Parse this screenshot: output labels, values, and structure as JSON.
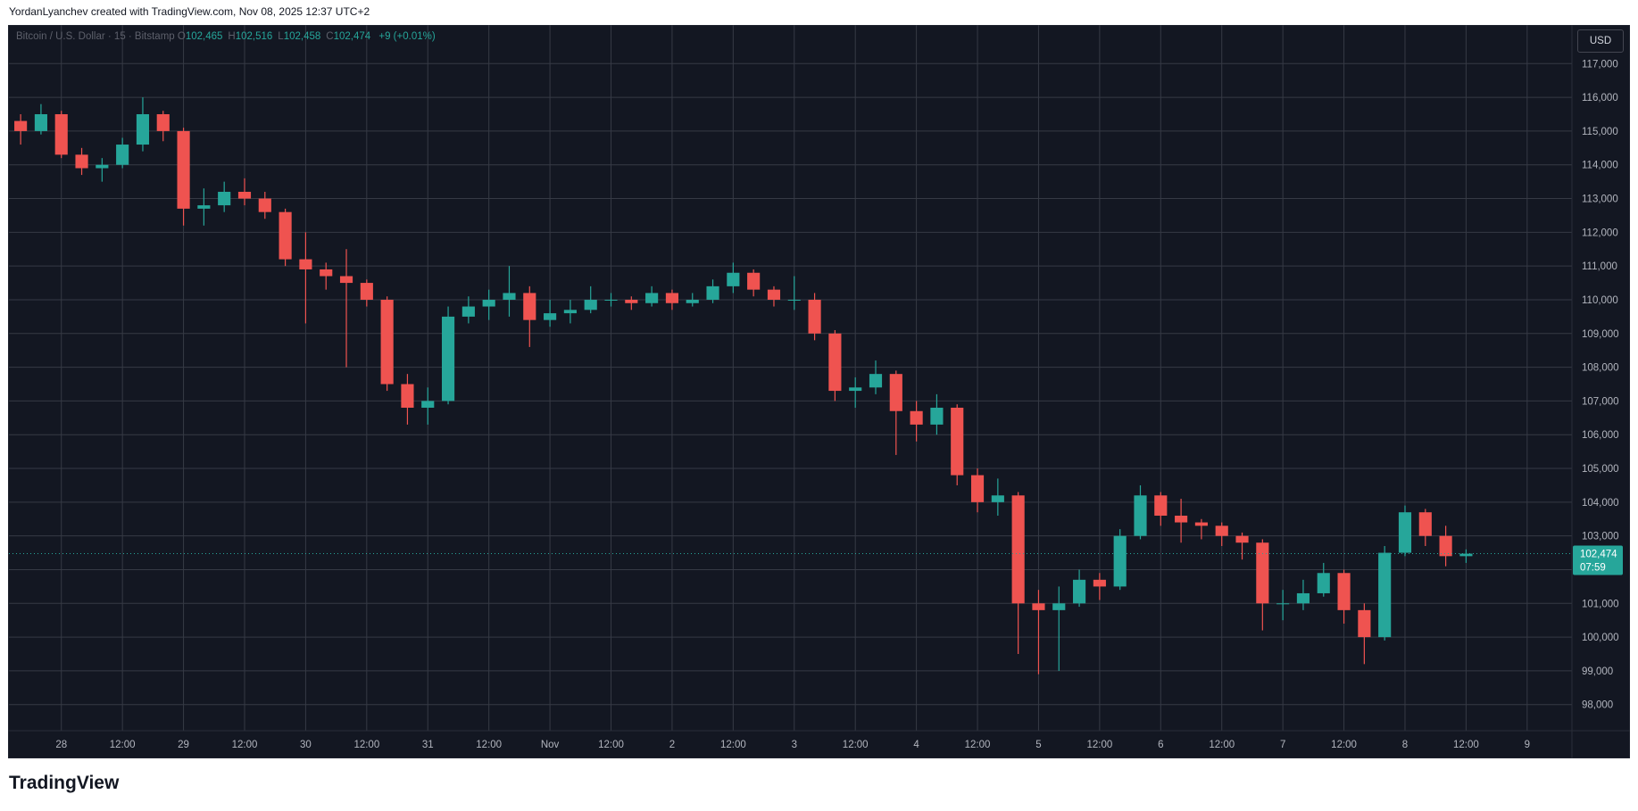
{
  "header": {
    "text": "YordanLyanchev created with TradingView.com, Nov 08, 2025 12:37 UTC+2"
  },
  "footer": {
    "logo": "TradingView"
  },
  "chart_data": {
    "type": "candlestick",
    "legend": {
      "symbol": "Bitcoin / U.S. Dollar · 15 · Bitstamp",
      "items": [
        {
          "key": "O",
          "value": "102,465"
        },
        {
          "key": "H",
          "value": "102,516"
        },
        {
          "key": "L",
          "value": "102,458"
        },
        {
          "key": "C",
          "value": "102,474"
        }
      ],
      "change": "+9 (+0.01%)"
    },
    "currency": "USD",
    "last_price": {
      "value": 102474,
      "label": "102,474"
    },
    "countdown": "07:59",
    "up_color": "#26a69a",
    "down_color": "#ef5350",
    "grid": true,
    "x": [
      -8,
      -4,
      0,
      4,
      8,
      12,
      16,
      20,
      24,
      28,
      32,
      36,
      40,
      44,
      48,
      52,
      56,
      60,
      64,
      68,
      72,
      76,
      80,
      84,
      88,
      92,
      96,
      100,
      104,
      108,
      112,
      116,
      120,
      124,
      128,
      132,
      136,
      140,
      144,
      148,
      152,
      156,
      160,
      164,
      168,
      172,
      176,
      180,
      184,
      188,
      192,
      196,
      200,
      204,
      208,
      212,
      216,
      220,
      224,
      228,
      232,
      236,
      240,
      244,
      248,
      252,
      256,
      260,
      264,
      268,
      272,
      276
    ],
    "open": [
      115300,
      115000,
      115500,
      114300,
      113900,
      114000,
      114600,
      115500,
      115000,
      112700,
      112800,
      113200,
      113000,
      112600,
      111200,
      110900,
      110700,
      110500,
      110000,
      107500,
      106800,
      107000,
      109500,
      109800,
      110000,
      110200,
      109400,
      109600,
      109700,
      110000,
      110000,
      109900,
      110200,
      109900,
      110000,
      110400,
      110800,
      110300,
      110000,
      110000,
      109000,
      107300,
      107400,
      107800,
      106700,
      106300,
      106800,
      104800,
      104000,
      104200,
      101000,
      100800,
      101000,
      101700,
      101500,
      103000,
      104200,
      103600,
      103400,
      103300,
      103000,
      102800,
      101000,
      101000,
      101300,
      101900,
      100800,
      100000,
      102500,
      103700,
      103000,
      102400
    ],
    "high": [
      115500,
      115800,
      115600,
      114500,
      114200,
      114800,
      116000,
      115600,
      115100,
      113300,
      113500,
      113600,
      113200,
      112700,
      112000,
      111100,
      111500,
      110600,
      110100,
      107800,
      107400,
      109800,
      110100,
      110300,
      111000,
      110400,
      110000,
      110000,
      110400,
      110200,
      110100,
      110400,
      110300,
      110200,
      110600,
      111100,
      110900,
      110400,
      110700,
      110200,
      109100,
      107700,
      108200,
      107900,
      107000,
      107200,
      106900,
      105000,
      104700,
      104300,
      101400,
      101500,
      102000,
      101900,
      103200,
      104500,
      104300,
      104100,
      103500,
      103400,
      103100,
      102900,
      101400,
      101700,
      102200,
      102000,
      101000,
      102700,
      103900,
      103800,
      103300,
      102600
    ],
    "low": [
      114600,
      114900,
      114200,
      113700,
      113500,
      113900,
      114400,
      114700,
      112200,
      112200,
      112600,
      112800,
      112400,
      111000,
      109300,
      110300,
      108000,
      109800,
      107300,
      106300,
      106300,
      106900,
      109300,
      109400,
      109500,
      108600,
      109200,
      109300,
      109600,
      109800,
      109700,
      109800,
      109700,
      109800,
      109900,
      110200,
      110100,
      109800,
      109700,
      108800,
      107000,
      106800,
      107200,
      105400,
      105800,
      106000,
      104500,
      103700,
      103600,
      99500,
      98900,
      99000,
      100900,
      101100,
      101400,
      102900,
      103300,
      102800,
      102900,
      102700,
      102300,
      100200,
      100500,
      100800,
      101200,
      100400,
      99200,
      99900,
      102400,
      102700,
      102100,
      102200
    ],
    "close": [
      115000,
      115500,
      114300,
      113900,
      114000,
      114600,
      115500,
      115000,
      112700,
      112800,
      113200,
      113000,
      112600,
      111200,
      110900,
      110700,
      110500,
      110000,
      107500,
      106800,
      107000,
      109500,
      109800,
      110000,
      110200,
      109400,
      109600,
      109700,
      110000,
      110000,
      109900,
      110200,
      109900,
      110000,
      110400,
      110800,
      110300,
      110000,
      110000,
      109000,
      107300,
      107400,
      107800,
      106700,
      106300,
      106800,
      104800,
      104000,
      104200,
      101000,
      100800,
      101000,
      101700,
      101500,
      103000,
      104200,
      103600,
      103400,
      103300,
      103000,
      102800,
      101000,
      101000,
      101300,
      101900,
      100800,
      100000,
      102500,
      103700,
      103000,
      102400,
      102474
    ],
    "xlim": [
      -10.3,
      296.8
    ],
    "xticks": [
      {
        "value": 0,
        "label": "28"
      },
      {
        "value": 12,
        "label": "12:00"
      },
      {
        "value": 24,
        "label": "29"
      },
      {
        "value": 36,
        "label": "12:00"
      },
      {
        "value": 48,
        "label": "30"
      },
      {
        "value": 60,
        "label": "12:00"
      },
      {
        "value": 72,
        "label": "31"
      },
      {
        "value": 84,
        "label": "12:00"
      },
      {
        "value": 96,
        "label": "Nov"
      },
      {
        "value": 108,
        "label": "12:00"
      },
      {
        "value": 120,
        "label": "2"
      },
      {
        "value": 132,
        "label": "12:00"
      },
      {
        "value": 144,
        "label": "3"
      },
      {
        "value": 156,
        "label": "12:00"
      },
      {
        "value": 168,
        "label": "4"
      },
      {
        "value": 180,
        "label": "12:00"
      },
      {
        "value": 192,
        "label": "5"
      },
      {
        "value": 204,
        "label": "12:00"
      },
      {
        "value": 216,
        "label": "6"
      },
      {
        "value": 228,
        "label": "12:00"
      },
      {
        "value": 240,
        "label": "7"
      },
      {
        "value": 252,
        "label": "12:00"
      },
      {
        "value": 264,
        "label": "8"
      },
      {
        "value": 276,
        "label": "12:00"
      },
      {
        "value": 288,
        "label": "9"
      }
    ],
    "ylim": [
      97226,
      118145
    ],
    "yticks": [
      {
        "value": 98000,
        "label": "98,000"
      },
      {
        "value": 99000,
        "label": "99,000"
      },
      {
        "value": 100000,
        "label": "100,000"
      },
      {
        "value": 101000,
        "label": "101,000"
      },
      {
        "value": 102000,
        "label": "102,000"
      },
      {
        "value": 103000,
        "label": "103,000"
      },
      {
        "value": 104000,
        "label": "104,000"
      },
      {
        "value": 105000,
        "label": "105,000"
      },
      {
        "value": 106000,
        "label": "106,000"
      },
      {
        "value": 107000,
        "label": "107,000"
      },
      {
        "value": 108000,
        "label": "108,000"
      },
      {
        "value": 109000,
        "label": "109,000"
      },
      {
        "value": 110000,
        "label": "110,000"
      },
      {
        "value": 111000,
        "label": "111,000"
      },
      {
        "value": 112000,
        "label": "112,000"
      },
      {
        "value": 113000,
        "label": "113,000"
      },
      {
        "value": 114000,
        "label": "114,000"
      },
      {
        "value": 115000,
        "label": "115,000"
      },
      {
        "value": 116000,
        "label": "116,000"
      },
      {
        "value": 117000,
        "label": "117,000"
      }
    ]
  }
}
